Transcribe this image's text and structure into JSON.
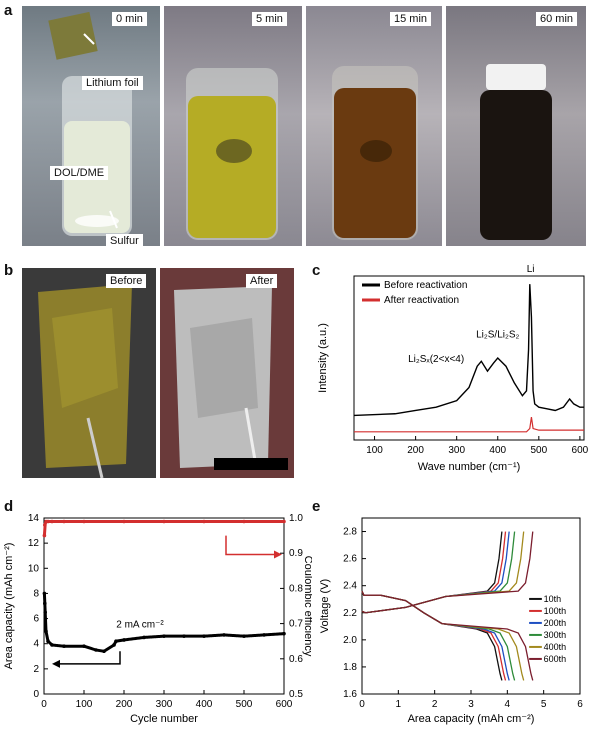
{
  "panel_labels": {
    "a": "a",
    "b": "b",
    "c": "c",
    "d": "d",
    "e": "e"
  },
  "panel_a": {
    "times": [
      "0 min",
      "5 min",
      "15 min",
      "60 min"
    ],
    "labels": {
      "foil": "Lithium foil",
      "solvent": "DOL/DME",
      "sulfur": "Sulfur"
    },
    "liquid_colors": [
      "#e4ead8",
      "#b5ac25",
      "#6a3a10",
      "#1a1410"
    ]
  },
  "panel_b": {
    "before": "Before",
    "after": "After"
  },
  "chart_data": [
    {
      "panel": "c",
      "type": "line",
      "xlabel": "Wave number (cm⁻¹)",
      "ylabel": "Intensity (a.u.)",
      "xlim": [
        50,
        610
      ],
      "xticks": [
        100,
        200,
        300,
        400,
        500,
        600
      ],
      "series": [
        {
          "name": "Before reactivation",
          "color": "#000000",
          "x": [
            50,
            150,
            200,
            250,
            300,
            330,
            350,
            360,
            375,
            390,
            400,
            420,
            440,
            460,
            470,
            475,
            478,
            482,
            486,
            490,
            500,
            520,
            540,
            560,
            575,
            585,
            600,
            610
          ],
          "y": [
            0.15,
            0.16,
            0.18,
            0.2,
            0.24,
            0.32,
            0.45,
            0.48,
            0.42,
            0.47,
            0.5,
            0.45,
            0.35,
            0.27,
            0.3,
            0.55,
            0.95,
            0.75,
            0.3,
            0.22,
            0.2,
            0.19,
            0.18,
            0.2,
            0.25,
            0.22,
            0.2,
            0.2
          ]
        },
        {
          "name": "After reactivation",
          "color": "#d32f2f",
          "x": [
            50,
            300,
            470,
            478,
            482,
            486,
            500,
            610
          ],
          "y": [
            0.05,
            0.05,
            0.05,
            0.07,
            0.14,
            0.07,
            0.06,
            0.06
          ]
        }
      ],
      "annotations": [
        {
          "text": "Li",
          "x": 480,
          "y": 1.0
        },
        {
          "text": "Li₂S/Li₂S₂",
          "x": 400,
          "y": 0.6
        },
        {
          "text": "Li₂Sₓ(2<x<4)",
          "x": 250,
          "y": 0.45
        }
      ]
    },
    {
      "panel": "d",
      "type": "scatter",
      "xlabel": "Cycle number",
      "ylabel": "Area capacity (mAh cm⁻²)",
      "ylabel_right": "Coulombic efficiency",
      "xlim": [
        0,
        600
      ],
      "ylim": [
        0,
        14
      ],
      "ylim_right": [
        0.5,
        1.0
      ],
      "xticks": [
        0,
        100,
        200,
        300,
        400,
        500,
        600
      ],
      "yticks": [
        0,
        2,
        4,
        6,
        8,
        10,
        12,
        14
      ],
      "yticks_right": [
        0.5,
        0.6,
        0.7,
        0.8,
        0.9,
        1.0
      ],
      "annotation": "2 mA cm⁻²",
      "series": [
        {
          "name": "Area capacity",
          "color": "#000000",
          "x": [
            1,
            2,
            3,
            5,
            10,
            20,
            50,
            100,
            130,
            150,
            175,
            180,
            200,
            250,
            300,
            350,
            400,
            450,
            500,
            550,
            600
          ],
          "y": [
            8,
            7.2,
            6.5,
            5,
            4.2,
            3.9,
            3.8,
            3.8,
            3.5,
            3.4,
            3.9,
            4.2,
            4.3,
            4.5,
            4.6,
            4.6,
            4.6,
            4.7,
            4.6,
            4.7,
            4.8
          ]
        },
        {
          "name": "Coulombic efficiency",
          "color": "#d32f2f",
          "x": [
            1,
            2,
            5,
            10,
            20,
            50,
            100,
            200,
            300,
            400,
            500,
            600
          ],
          "y": [
            0.95,
            0.98,
            0.99,
            0.99,
            0.99,
            0.99,
            0.99,
            0.99,
            0.99,
            0.99,
            0.99,
            0.99
          ]
        }
      ]
    },
    {
      "panel": "e",
      "type": "line",
      "xlabel": "Area capacity (mAh cm⁻²)",
      "ylabel": "Voltage (V)",
      "xlim": [
        0,
        6
      ],
      "ylim": [
        1.6,
        2.9
      ],
      "xticks": [
        0,
        1,
        2,
        3,
        4,
        5,
        6
      ],
      "yticks": [
        1.6,
        1.8,
        2.0,
        2.2,
        2.4,
        2.6,
        2.8
      ],
      "legend": [
        "10th",
        "100th",
        "200th",
        "300th",
        "400th",
        "600th"
      ],
      "colors": [
        "#111111",
        "#d32f2f",
        "#1e4fc2",
        "#2e8b3a",
        "#a38a1e",
        "#7b1e2e"
      ],
      "caps": [
        3.85,
        3.95,
        4.05,
        4.2,
        4.45,
        4.7
      ]
    }
  ]
}
